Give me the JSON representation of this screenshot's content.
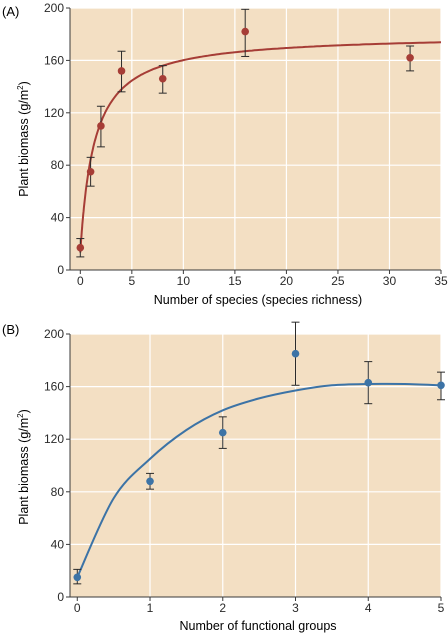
{
  "colors": {
    "plot_bg": "#f3dfc3",
    "grid": "#ffffff",
    "axis": "#3a3a3a",
    "text": "#2a2a2a",
    "panel_a": "#a63d36",
    "panel_b": "#3c73a6"
  },
  "chart_data": [
    {
      "type": "scatter",
      "panel_label": "(A)",
      "xlabel": "Number of species (species richness)",
      "ylabel": "Plant biomass (g/m",
      "ylabel_sup": "2",
      "ylabel_end": ")",
      "xlim": [
        -1,
        35
      ],
      "ylim": [
        0,
        200
      ],
      "xticks": [
        0,
        5,
        10,
        15,
        20,
        25,
        30,
        35
      ],
      "yticks": [
        0,
        40,
        80,
        120,
        160,
        200
      ],
      "xtick_labels": [
        "0",
        "5",
        "10",
        "15",
        "20",
        "25",
        "30",
        "35"
      ],
      "ytick_labels": [
        "0",
        "40",
        "80",
        "120",
        "160",
        "200"
      ],
      "grid": true,
      "series": [
        {
          "x": [
            0,
            1,
            2,
            4,
            8,
            16,
            32
          ],
          "y": [
            17,
            75,
            110,
            152,
            146,
            182,
            162
          ],
          "err_low": [
            10,
            64,
            94,
            136,
            135,
            163,
            152
          ],
          "err_high": [
            24,
            86,
            125,
            167,
            156,
            199,
            171
          ]
        }
      ],
      "fit_curve": {
        "form": "a*(x+c)/(b+x+c)",
        "a": 180,
        "b": 1.25,
        "c": 0.1,
        "x_range": [
          0,
          35
        ]
      }
    },
    {
      "type": "scatter",
      "panel_label": "(B)",
      "xlabel": "Number of functional groups",
      "ylabel": "Plant biomass (g/m",
      "ylabel_sup": "2",
      "ylabel_end": ")",
      "xlim": [
        -0.1,
        5
      ],
      "ylim": [
        0,
        200
      ],
      "xticks": [
        0,
        1,
        2,
        3,
        4,
        5
      ],
      "yticks": [
        0,
        40,
        80,
        120,
        160,
        200
      ],
      "xtick_labels": [
        "0",
        "1",
        "2",
        "3",
        "4",
        "5"
      ],
      "ytick_labels": [
        "0",
        "40",
        "80",
        "120",
        "160",
        "200"
      ],
      "grid": true,
      "series": [
        {
          "x": [
            0,
            1,
            2,
            3,
            4,
            5
          ],
          "y": [
            15,
            88,
            125,
            185,
            163,
            161
          ],
          "err_low": [
            10,
            82,
            113,
            161,
            147,
            150
          ],
          "err_high": [
            21,
            94,
            137,
            209,
            179,
            171
          ]
        }
      ],
      "fit_curve": {
        "form": "smooth",
        "points": [
          [
            0,
            15
          ],
          [
            0.5,
            75
          ],
          [
            1,
            105
          ],
          [
            1.5,
            127
          ],
          [
            2,
            142
          ],
          [
            2.5,
            151
          ],
          [
            3,
            157
          ],
          [
            3.5,
            161
          ],
          [
            4,
            162
          ],
          [
            4.5,
            162
          ],
          [
            5,
            161
          ]
        ]
      }
    }
  ]
}
